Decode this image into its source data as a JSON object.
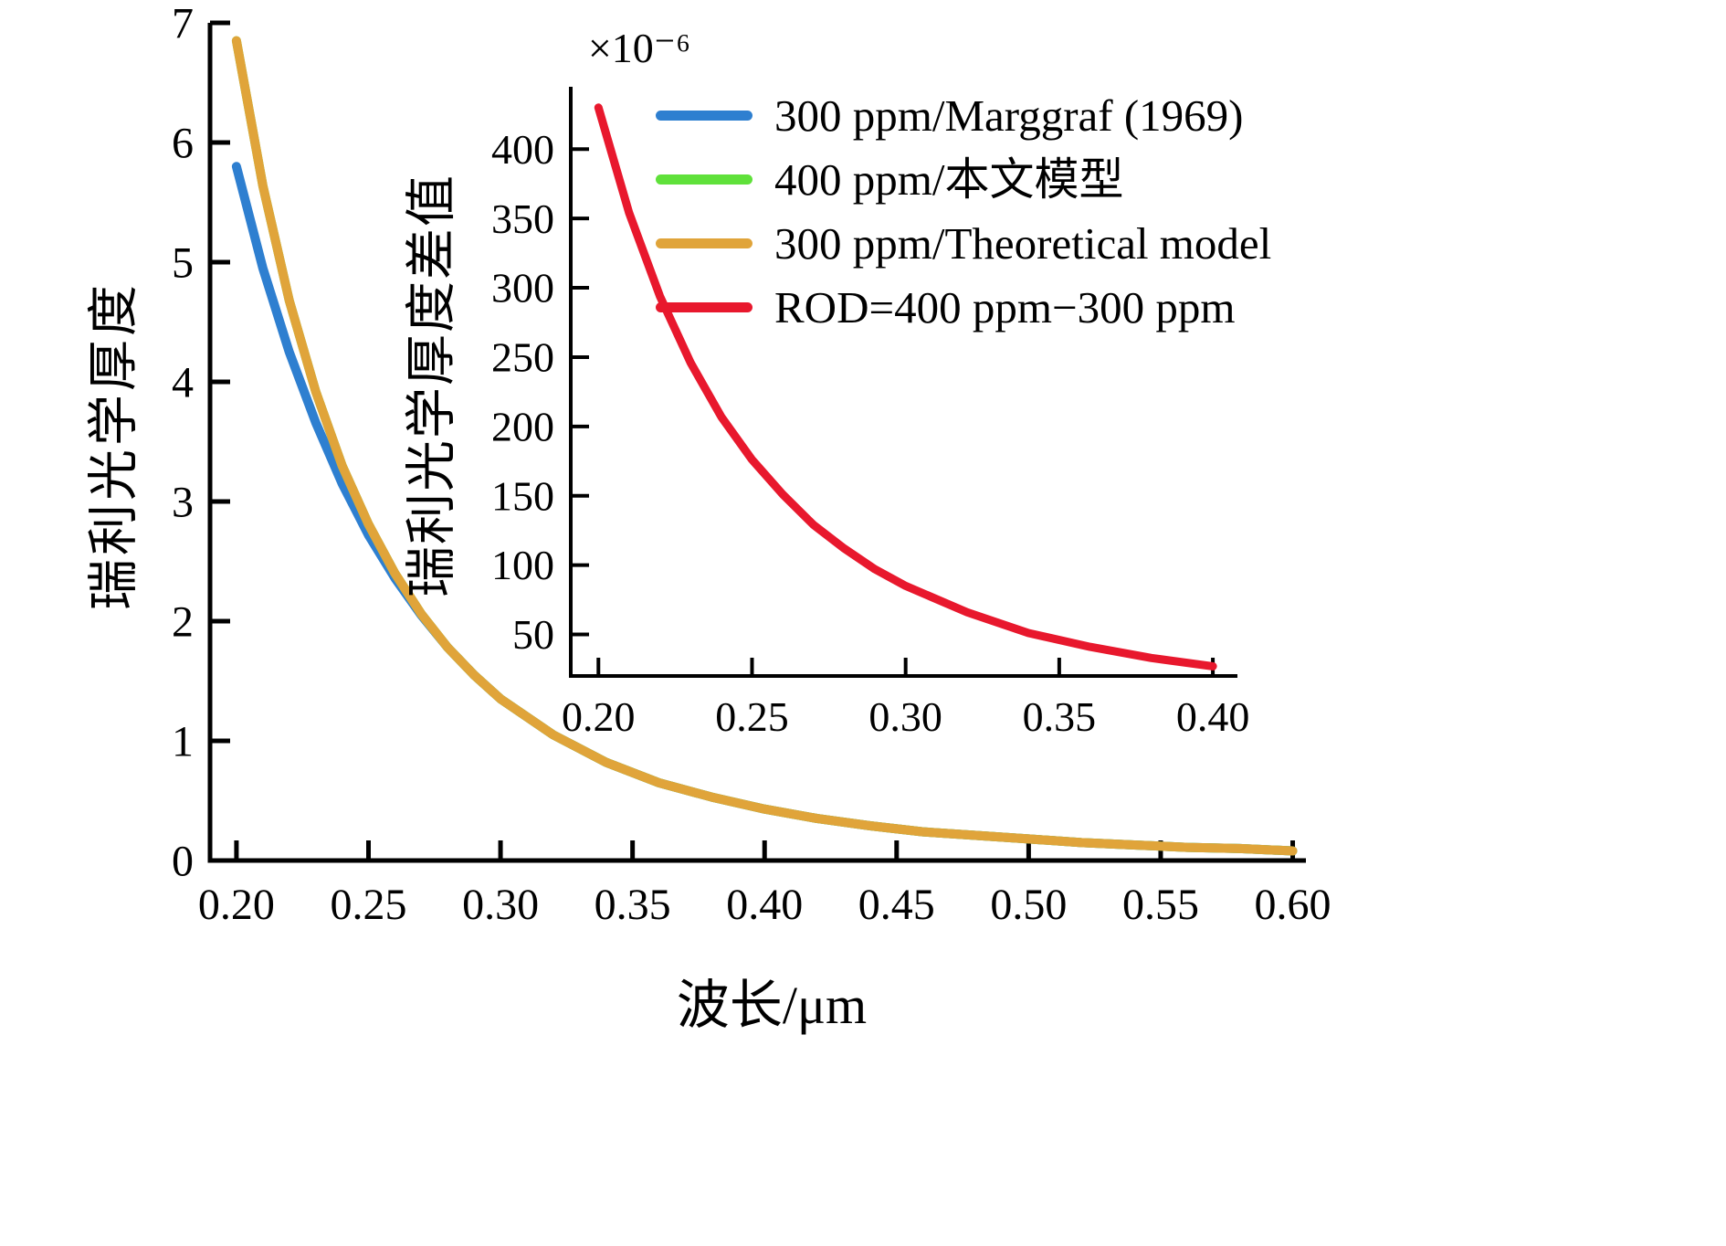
{
  "colors": {
    "blue": "#2E7FD0",
    "green": "#5FE13A",
    "orange": "#E0A43A",
    "red": "#E8182D",
    "axis": "#000000",
    "background": "#FFFFFF"
  },
  "legend": {
    "position": "top-right",
    "items": [
      {
        "id": "marggraf-300ppm",
        "label": "300 ppm/Marggraf (1969)",
        "color_key": "blue"
      },
      {
        "id": "model-400ppm",
        "label": "400 ppm/本文模型",
        "color_key": "green"
      },
      {
        "id": "theoretical-300ppm",
        "label": "300 ppm/Theoretical model",
        "color_key": "orange"
      },
      {
        "id": "rod-difference",
        "label": "ROD=400 ppm−300 ppm",
        "color_key": "red"
      }
    ]
  },
  "chart_data": [
    {
      "type": "line",
      "title": "",
      "xlabel": "波长/μm",
      "ylabel": "瑞利光学厚度",
      "xlim": [
        0.19,
        0.605
      ],
      "ylim": [
        0,
        7
      ],
      "grid": false,
      "xticks": [
        0.2,
        0.25,
        0.3,
        0.35,
        0.4,
        0.45,
        0.5,
        0.55,
        0.6
      ],
      "xtick_labels": [
        "0.20",
        "0.25",
        "0.30",
        "0.35",
        "0.40",
        "0.45",
        "0.50",
        "0.55",
        "0.60"
      ],
      "yticks": [
        0,
        1,
        2,
        3,
        4,
        5,
        6,
        7
      ],
      "ytick_labels": [
        "0",
        "1",
        "2",
        "3",
        "4",
        "5",
        "6",
        "7"
      ],
      "x": [
        0.2,
        0.21,
        0.22,
        0.23,
        0.24,
        0.25,
        0.26,
        0.27,
        0.28,
        0.29,
        0.3,
        0.32,
        0.34,
        0.36,
        0.38,
        0.4,
        0.42,
        0.44,
        0.46,
        0.48,
        0.5,
        0.52,
        0.54,
        0.56,
        0.58,
        0.6
      ],
      "series": [
        {
          "id": "marggraf-300ppm",
          "name": "300 ppm/Marggraf (1969)",
          "color_key": "blue",
          "values": [
            5.8,
            4.95,
            4.25,
            3.66,
            3.15,
            2.72,
            2.36,
            2.05,
            1.78,
            1.55,
            1.35,
            1.05,
            0.82,
            0.65,
            0.53,
            0.43,
            0.35,
            0.29,
            0.24,
            0.21,
            0.18,
            0.15,
            0.13,
            0.11,
            0.1,
            0.08
          ]
        },
        {
          "id": "model-400ppm",
          "name": "400 ppm/本文模型",
          "color_key": "green",
          "values": [
            6.85,
            5.64,
            4.68,
            3.92,
            3.3,
            2.81,
            2.4,
            2.06,
            1.78,
            1.55,
            1.35,
            1.05,
            0.82,
            0.65,
            0.53,
            0.43,
            0.35,
            0.29,
            0.24,
            0.21,
            0.18,
            0.15,
            0.13,
            0.11,
            0.1,
            0.08
          ]
        },
        {
          "id": "theoretical-300ppm",
          "name": "300 ppm/Theoretical model",
          "color_key": "orange",
          "values": [
            6.85,
            5.64,
            4.68,
            3.92,
            3.3,
            2.81,
            2.4,
            2.06,
            1.78,
            1.55,
            1.35,
            1.05,
            0.82,
            0.65,
            0.53,
            0.43,
            0.35,
            0.29,
            0.24,
            0.21,
            0.18,
            0.15,
            0.13,
            0.11,
            0.1,
            0.08
          ]
        }
      ]
    },
    {
      "type": "line",
      "title": "",
      "xlabel": "",
      "ylabel": "瑞利光学厚度差值",
      "multiplier_label": "×10⁻⁶",
      "xlim": [
        0.191,
        0.408
      ],
      "ylim": [
        20,
        445
      ],
      "grid": false,
      "xticks": [
        0.2,
        0.25,
        0.3,
        0.35,
        0.4
      ],
      "xtick_labels": [
        "0.20",
        "0.25",
        "0.30",
        "0.35",
        "0.40"
      ],
      "yticks": [
        50,
        100,
        150,
        200,
        250,
        300,
        350,
        400
      ],
      "ytick_labels": [
        "50",
        "100",
        "150",
        "200",
        "250",
        "300",
        "350",
        "400"
      ],
      "x": [
        0.2,
        0.21,
        0.22,
        0.23,
        0.24,
        0.25,
        0.26,
        0.27,
        0.28,
        0.29,
        0.3,
        0.32,
        0.34,
        0.36,
        0.38,
        0.4
      ],
      "series": [
        {
          "id": "rod-difference",
          "name": "ROD=400 ppm−300 ppm",
          "color_key": "red",
          "values": [
            430,
            354,
            294,
            246,
            207,
            176,
            151,
            129,
            112,
            97,
            85,
            66,
            51,
            41,
            33,
            27
          ]
        }
      ]
    }
  ]
}
